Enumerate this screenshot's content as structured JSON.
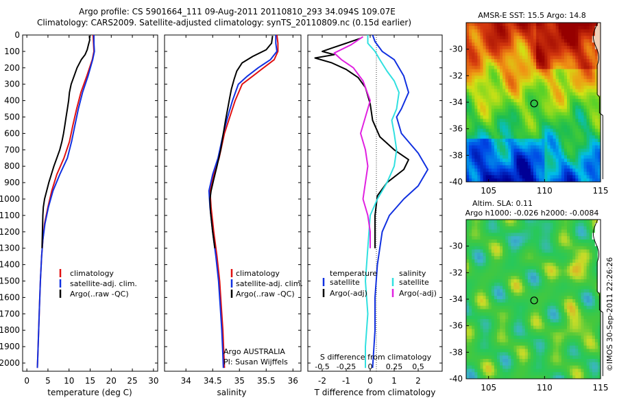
{
  "header": {
    "title_line1": "Argo profile: CS 5901664_111 09-Aug-2011 20110810_293 34.094S 109.07E",
    "title_line2": "Climatology: CARS2009. Satellite-adjusted climatology: synTS_20110809.nc (0.15d earlier)"
  },
  "watermark": "©IMOS 30-Sep-2011 22:26:26",
  "colors": {
    "climatology": "#e01010",
    "satellite": "#1030e0",
    "argo": "#000000",
    "satellite_s": "#30e0e0",
    "argo_s": "#e020e0"
  },
  "chart_data": [
    {
      "id": "temperature",
      "type": "line",
      "xlabel": "temperature (deg C)",
      "xlim": [
        -1,
        31
      ],
      "xticks": [
        "0",
        "5",
        "10",
        "15",
        "20",
        "25",
        "30"
      ],
      "ylim": [
        0,
        2050
      ],
      "yticks": [
        "0",
        "100",
        "200",
        "300",
        "400",
        "500",
        "600",
        "700",
        "800",
        "900",
        "1000",
        "1100",
        "1200",
        "1300",
        "1400",
        "1500",
        "1600",
        "1700",
        "1800",
        "1900",
        "2000"
      ],
      "legend": [
        "climatology",
        "satellite-adj. clim.",
        "Argo(..raw -QC)"
      ],
      "series": [
        {
          "name": "climatology",
          "color": "#e01010",
          "points": [
            [
              15.7,
              0
            ],
            [
              15.8,
              50
            ],
            [
              15.9,
              100
            ],
            [
              15.5,
              150
            ],
            [
              14.2,
              250
            ],
            [
              12.8,
              350
            ],
            [
              11.8,
              450
            ],
            [
              10.9,
              550
            ],
            [
              10.1,
              650
            ],
            [
              8.8,
              750
            ],
            [
              7.1,
              850
            ],
            [
              5.9,
              950
            ],
            [
              5.0,
              1050
            ],
            [
              4.2,
              1150
            ],
            [
              3.8,
              1250
            ],
            [
              3.5,
              1350
            ],
            [
              3.2,
              1500
            ],
            [
              3.0,
              1650
            ],
            [
              2.8,
              1800
            ],
            [
              2.6,
              1950
            ],
            [
              2.5,
              2030
            ]
          ]
        },
        {
          "name": "satellite-adj. clim.",
          "color": "#1030e0",
          "points": [
            [
              15.9,
              0
            ],
            [
              15.9,
              50
            ],
            [
              16.0,
              100
            ],
            [
              15.6,
              150
            ],
            [
              14.5,
              250
            ],
            [
              13.2,
              350
            ],
            [
              12.2,
              450
            ],
            [
              11.4,
              550
            ],
            [
              10.6,
              650
            ],
            [
              9.6,
              750
            ],
            [
              7.8,
              850
            ],
            [
              6.2,
              950
            ],
            [
              5.1,
              1050
            ],
            [
              4.3,
              1150
            ],
            [
              3.8,
              1250
            ],
            [
              3.5,
              1350
            ],
            [
              3.2,
              1500
            ],
            [
              3.0,
              1650
            ],
            [
              2.8,
              1800
            ],
            [
              2.6,
              1950
            ],
            [
              2.5,
              2030
            ]
          ]
        },
        {
          "name": "Argo(..raw -QC)",
          "color": "#000000",
          "points": [
            [
              14.8,
              5
            ],
            [
              14.9,
              30
            ],
            [
              14.6,
              60
            ],
            [
              14.3,
              90
            ],
            [
              13.8,
              120
            ],
            [
              12.9,
              150
            ],
            [
              11.9,
              200
            ],
            [
              11.2,
              250
            ],
            [
              10.5,
              300
            ],
            [
              10.1,
              350
            ],
            [
              9.9,
              400
            ],
            [
              9.6,
              450
            ],
            [
              9.3,
              500
            ],
            [
              9.0,
              550
            ],
            [
              8.7,
              600
            ],
            [
              8.3,
              650
            ],
            [
              7.8,
              700
            ],
            [
              7.1,
              750
            ],
            [
              6.4,
              800
            ],
            [
              5.8,
              850
            ],
            [
              5.2,
              900
            ],
            [
              4.7,
              950
            ],
            [
              4.2,
              1000
            ],
            [
              3.9,
              1050
            ],
            [
              3.8,
              1100
            ],
            [
              3.7,
              1200
            ],
            [
              3.6,
              1300
            ]
          ]
        }
      ]
    },
    {
      "id": "salinity",
      "type": "line",
      "xlabel": "salinity",
      "xlim": [
        33.6,
        36.15
      ],
      "xticks": [
        "34",
        "34.5",
        "35",
        "35.5",
        "36"
      ],
      "ylim": [
        0,
        2050
      ],
      "legend": [
        "climatology",
        "satellite-adj. clim.",
        "Argo(..raw -QC)"
      ],
      "annotation_line1": "Argo AUSTRALIA",
      "annotation_line2": "PI: Susan Wijffels",
      "series": [
        {
          "name": "climatology",
          "color": "#e01010",
          "points": [
            [
              35.7,
              0
            ],
            [
              35.72,
              50
            ],
            [
              35.72,
              100
            ],
            [
              35.65,
              150
            ],
            [
              35.45,
              200
            ],
            [
              35.25,
              250
            ],
            [
              35.05,
              300
            ],
            [
              34.92,
              400
            ],
            [
              34.82,
              500
            ],
            [
              34.72,
              600
            ],
            [
              34.62,
              750
            ],
            [
              34.52,
              850
            ],
            [
              34.45,
              950
            ],
            [
              34.47,
              1050
            ],
            [
              34.52,
              1200
            ],
            [
              34.58,
              1350
            ],
            [
              34.63,
              1500
            ],
            [
              34.66,
              1650
            ],
            [
              34.69,
              1800
            ],
            [
              34.71,
              1950
            ],
            [
              34.72,
              2030
            ]
          ]
        },
        {
          "name": "satellite-adj. clim.",
          "color": "#1030e0",
          "points": [
            [
              35.68,
              0
            ],
            [
              35.68,
              50
            ],
            [
              35.7,
              100
            ],
            [
              35.58,
              150
            ],
            [
              35.35,
              200
            ],
            [
              35.15,
              250
            ],
            [
              34.98,
              300
            ],
            [
              34.87,
              400
            ],
            [
              34.78,
              500
            ],
            [
              34.7,
              600
            ],
            [
              34.6,
              750
            ],
            [
              34.5,
              850
            ],
            [
              34.43,
              950
            ],
            [
              34.45,
              1050
            ],
            [
              34.5,
              1200
            ],
            [
              34.56,
              1350
            ],
            [
              34.61,
              1500
            ],
            [
              34.64,
              1650
            ],
            [
              34.67,
              1800
            ],
            [
              34.69,
              1950
            ],
            [
              34.7,
              2030
            ]
          ]
        },
        {
          "name": "Argo(..raw -QC)",
          "color": "#000000",
          "points": [
            [
              35.62,
              5
            ],
            [
              35.6,
              50
            ],
            [
              35.5,
              90
            ],
            [
              35.25,
              130
            ],
            [
              35.05,
              170
            ],
            [
              34.95,
              220
            ],
            [
              34.9,
              270
            ],
            [
              34.85,
              330
            ],
            [
              34.82,
              380
            ],
            [
              34.78,
              450
            ],
            [
              34.74,
              520
            ],
            [
              34.7,
              600
            ],
            [
              34.65,
              700
            ],
            [
              34.58,
              800
            ],
            [
              34.52,
              880
            ],
            [
              34.47,
              950
            ],
            [
              34.45,
              1000
            ],
            [
              34.46,
              1080
            ],
            [
              34.5,
              1200
            ],
            [
              34.54,
              1300
            ]
          ]
        }
      ]
    },
    {
      "id": "difference",
      "type": "line",
      "xlabel": "T difference from climatology",
      "xlabel_top": "S difference from climatology",
      "xlim": [
        -2.6,
        3.0
      ],
      "xticks": [
        "-2",
        "-1",
        "0",
        "1",
        "2"
      ],
      "sticks": [
        "-0.5",
        "-0.25",
        "0",
        "0.25",
        "0.5"
      ],
      "ylim": [
        0,
        2050
      ],
      "legend_temperature_title": "temperature",
      "legend_salinity_title": "salinity",
      "legend": [
        "satellite",
        "Argo(-adj)",
        "satellite",
        "Argo(-adj)"
      ],
      "series": [
        {
          "name": "satellite",
          "color": "#1030e0",
          "points": [
            [
              0.1,
              0
            ],
            [
              0.2,
              40
            ],
            [
              0.5,
              100
            ],
            [
              1.0,
              150
            ],
            [
              1.4,
              250
            ],
            [
              1.6,
              350
            ],
            [
              1.3,
              450
            ],
            [
              1.1,
              500
            ],
            [
              1.3,
              600
            ],
            [
              2.0,
              720
            ],
            [
              2.4,
              820
            ],
            [
              2.0,
              920
            ],
            [
              1.4,
              1000
            ],
            [
              0.8,
              1100
            ],
            [
              0.5,
              1200
            ],
            [
              0.3,
              1400
            ],
            [
              0.2,
              1600
            ],
            [
              0.2,
              1800
            ],
            [
              0.1,
              2030
            ]
          ]
        },
        {
          "name": "Argo(-adj)",
          "color": "#000000",
          "points": [
            [
              -0.4,
              20
            ],
            [
              -1.0,
              50
            ],
            [
              -1.6,
              80
            ],
            [
              -2.0,
              100
            ],
            [
              -1.5,
              120
            ],
            [
              -2.3,
              140
            ],
            [
              -1.6,
              170
            ],
            [
              -1.0,
              210
            ],
            [
              -0.5,
              260
            ],
            [
              -0.2,
              320
            ],
            [
              0.0,
              420
            ],
            [
              0.1,
              520
            ],
            [
              0.4,
              620
            ],
            [
              1.0,
              700
            ],
            [
              1.6,
              760
            ],
            [
              1.4,
              820
            ],
            [
              0.7,
              900
            ],
            [
              0.3,
              980
            ],
            [
              0.2,
              1100
            ],
            [
              0.2,
              1300
            ]
          ]
        },
        {
          "name": "satellite",
          "color": "#30e0e0",
          "points": [
            [
              -0.1,
              0
            ],
            [
              -0.1,
              50
            ],
            [
              0.2,
              100
            ],
            [
              0.4,
              150
            ],
            [
              0.7,
              220
            ],
            [
              1.0,
              280
            ],
            [
              1.2,
              350
            ],
            [
              1.1,
              450
            ],
            [
              0.9,
              520
            ],
            [
              1.0,
              600
            ],
            [
              1.1,
              700
            ],
            [
              1.0,
              800
            ],
            [
              0.7,
              900
            ],
            [
              0.3,
              1000
            ],
            [
              0.0,
              1100
            ],
            [
              -0.1,
              1300
            ],
            [
              -0.2,
              1500
            ],
            [
              -0.1,
              1700
            ],
            [
              -0.2,
              1900
            ],
            [
              -0.2,
              2030
            ]
          ]
        },
        {
          "name": "Argo(-adj)",
          "color": "#e020e0",
          "points": [
            [
              -0.3,
              10
            ],
            [
              -0.8,
              60
            ],
            [
              -1.5,
              110
            ],
            [
              -1.2,
              150
            ],
            [
              -0.7,
              200
            ],
            [
              -0.3,
              280
            ],
            [
              0.0,
              400
            ],
            [
              -0.2,
              500
            ],
            [
              -0.4,
              600
            ],
            [
              -0.2,
              700
            ],
            [
              -0.1,
              800
            ],
            [
              -0.2,
              900
            ],
            [
              -0.3,
              1000
            ],
            [
              -0.1,
              1100
            ],
            [
              0.0,
              1200
            ],
            [
              0.0,
              1300
            ]
          ]
        }
      ]
    },
    {
      "id": "sst_map",
      "type": "heatmap",
      "title": "AMSR-E SST: 15.5 Argo: 14.8",
      "xlim": [
        103,
        115
      ],
      "ylim": [
        -40,
        -28
      ],
      "xticks": [
        "105",
        "110",
        "115"
      ],
      "yticks": [
        "-30",
        "-32",
        "-34",
        "-36",
        "-38",
        "-40"
      ],
      "argo_position": [
        109.07,
        -34.094
      ]
    },
    {
      "id": "sla_map",
      "type": "heatmap",
      "title_line1": "Altim. SLA: 0.11",
      "title_line2": "Argo h1000: -0.026 h2000: -0.0084",
      "xlim": [
        103,
        115
      ],
      "ylim": [
        -40,
        -28
      ],
      "xticks": [
        "105",
        "110",
        "115"
      ],
      "yticks": [
        "-30",
        "-32",
        "-34",
        "-36",
        "-38",
        "-40"
      ],
      "argo_position": [
        109.07,
        -34.094
      ]
    }
  ]
}
